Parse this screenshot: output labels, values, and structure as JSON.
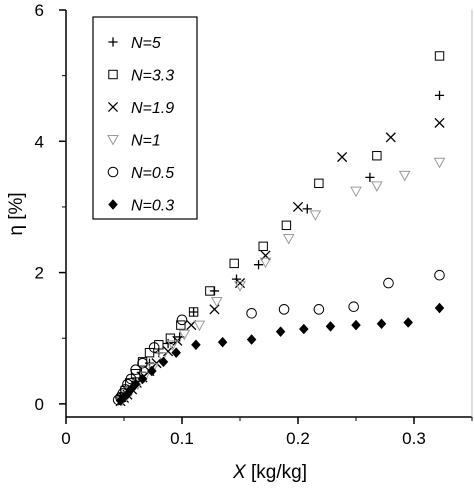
{
  "chart_data": {
    "type": "scatter",
    "xlabel_var": "X",
    "xlabel_unit": " [kg/kg]",
    "ylabel": "η [%]",
    "xlim": [
      0,
      0.35
    ],
    "ylim": [
      -0.2,
      6.0
    ],
    "xticks": [
      0,
      0.1,
      0.2,
      0.3
    ],
    "xtick_labels": [
      "0",
      "0.1",
      "0.2",
      "0.3"
    ],
    "yticks": [
      0,
      2,
      4,
      6
    ],
    "ytick_labels": [
      "0",
      "2",
      "4",
      "6"
    ],
    "grid": false,
    "legend_position": "top-left",
    "series": [
      {
        "name": "N=5",
        "marker": "plus",
        "color": "#000000",
        "x": [
          0.047,
          0.05,
          0.053,
          0.056,
          0.06,
          0.065,
          0.072,
          0.08,
          0.088,
          0.098,
          0.11,
          0.128,
          0.147,
          0.166,
          0.208,
          0.262,
          0.322
        ],
        "y": [
          0.05,
          0.09,
          0.14,
          0.22,
          0.34,
          0.48,
          0.62,
          0.78,
          0.92,
          1.02,
          1.4,
          1.72,
          1.9,
          2.12,
          2.97,
          3.45,
          4.7
        ]
      },
      {
        "name": "N=3.3",
        "marker": "square",
        "color": "#000000",
        "x": [
          0.048,
          0.051,
          0.055,
          0.06,
          0.066,
          0.072,
          0.08,
          0.09,
          0.099,
          0.11,
          0.124,
          0.145,
          0.17,
          0.19,
          0.218,
          0.268,
          0.322
        ],
        "y": [
          0.1,
          0.2,
          0.32,
          0.46,
          0.64,
          0.78,
          0.9,
          1.0,
          1.2,
          1.4,
          1.72,
          2.14,
          2.4,
          2.72,
          3.36,
          3.78,
          5.3
        ]
      },
      {
        "name": "N=1.9",
        "marker": "cross",
        "color": "#000000",
        "x": [
          0.047,
          0.05,
          0.053,
          0.057,
          0.061,
          0.066,
          0.072,
          0.078,
          0.088,
          0.096,
          0.108,
          0.128,
          0.15,
          0.172,
          0.2,
          0.238,
          0.28,
          0.322
        ],
        "y": [
          0.04,
          0.09,
          0.14,
          0.22,
          0.32,
          0.4,
          0.5,
          0.62,
          0.8,
          0.96,
          1.2,
          1.44,
          1.84,
          2.26,
          3.0,
          3.76,
          4.06,
          4.28
        ]
      },
      {
        "name": "N=1",
        "marker": "triangle-down",
        "color": "#9a9a9a",
        "x": [
          0.048,
          0.052,
          0.056,
          0.062,
          0.068,
          0.075,
          0.083,
          0.092,
          0.102,
          0.115,
          0.13,
          0.15,
          0.172,
          0.192,
          0.215,
          0.25,
          0.268,
          0.292,
          0.322
        ],
        "y": [
          0.05,
          0.12,
          0.2,
          0.3,
          0.42,
          0.55,
          0.72,
          0.9,
          1.06,
          1.2,
          1.56,
          1.8,
          2.16,
          2.52,
          2.88,
          3.24,
          3.32,
          3.48,
          3.68
        ]
      },
      {
        "name": "N=0.5",
        "marker": "circle",
        "color": "#000000",
        "x": [
          0.045,
          0.047,
          0.049,
          0.051,
          0.053,
          0.056,
          0.06,
          0.066,
          0.076,
          0.1,
          0.16,
          0.188,
          0.218,
          0.248,
          0.278,
          0.322
        ],
        "y": [
          0.06,
          0.1,
          0.16,
          0.22,
          0.3,
          0.38,
          0.52,
          0.62,
          0.86,
          1.28,
          1.38,
          1.44,
          1.44,
          1.48,
          1.84,
          1.96
        ]
      },
      {
        "name": "N=0.3",
        "marker": "diamond",
        "color": "#000000",
        "x": [
          0.047,
          0.05,
          0.053,
          0.056,
          0.06,
          0.066,
          0.074,
          0.084,
          0.095,
          0.112,
          0.135,
          0.16,
          0.185,
          0.205,
          0.228,
          0.25,
          0.272,
          0.295,
          0.322
        ],
        "y": [
          0.05,
          0.1,
          0.15,
          0.22,
          0.3,
          0.38,
          0.5,
          0.64,
          0.78,
          0.9,
          0.94,
          0.98,
          1.1,
          1.14,
          1.18,
          1.2,
          1.22,
          1.24,
          1.46
        ]
      }
    ]
  }
}
